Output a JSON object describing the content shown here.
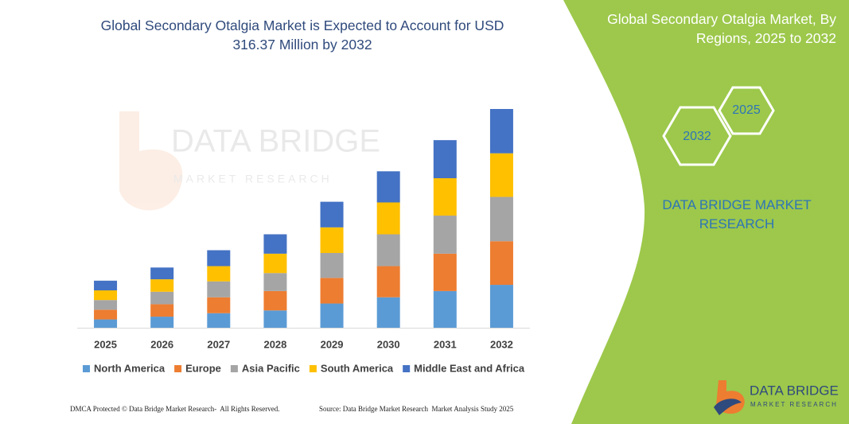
{
  "chart_data": {
    "type": "stacked-bar",
    "title": "Global Secondary Otalgia Market is Expected to Account for USD 316.37 Million by 2032",
    "categories": [
      "2025",
      "2026",
      "2027",
      "2028",
      "2029",
      "2030",
      "2031",
      "2032"
    ],
    "series": [
      {
        "name": "North America",
        "color": "#5b9bd5",
        "values": [
          12,
          16,
          21,
          25,
          35,
          44,
          53,
          62
        ]
      },
      {
        "name": "Europe",
        "color": "#ed7d31",
        "values": [
          14,
          18,
          23,
          28,
          37,
          45,
          54,
          63
        ]
      },
      {
        "name": "Asia Pacific",
        "color": "#a5a5a5",
        "values": [
          14,
          18,
          23,
          26,
          36,
          46,
          55,
          64
        ]
      },
      {
        "name": "South America",
        "color": "#ffc000",
        "values": [
          14,
          18,
          22,
          28,
          37,
          46,
          54,
          63
        ]
      },
      {
        "name": "Middle East and Africa",
        "color": "#4472c4",
        "values": [
          14,
          17,
          23,
          28,
          37,
          45,
          55,
          64
        ]
      }
    ]
  },
  "side_title": "Global Secondary Otalgia Market, By Regions, 2025 to 2032",
  "hexagons": [
    "2032",
    "2025"
  ],
  "brand": "DATA BRIDGE MARKET RESEARCH",
  "watermark": {
    "name": "DATA BRIDGE",
    "tagline": "MARKET RESEARCH"
  },
  "logo": {
    "name": "DATA BRIDGE",
    "tagline": "MARKET RESEARCH"
  },
  "footer": {
    "dmca": "DMCA Protected © Data Bridge Market Research-  All Rights Reserved.",
    "source": "Source: Data Bridge Market Research  Market Analysis Study 2025"
  }
}
